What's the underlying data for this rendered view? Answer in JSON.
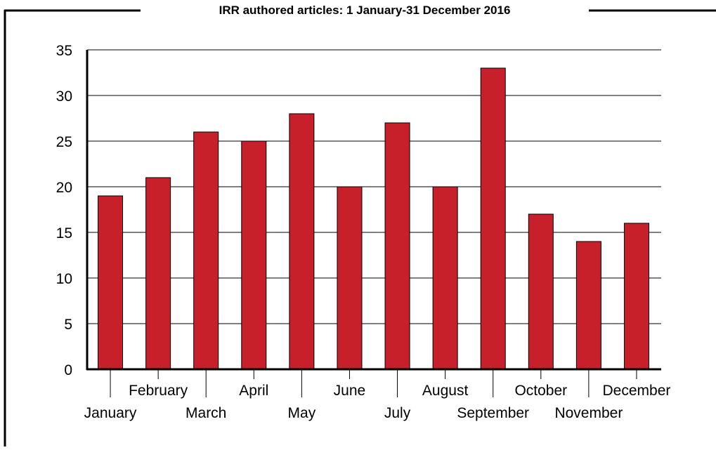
{
  "chart_data": {
    "type": "bar",
    "title": "IRR authored articles: 1 January-31 December 2016",
    "categories": [
      "January",
      "February",
      "March",
      "April",
      "May",
      "June",
      "July",
      "August",
      "September",
      "October",
      "November",
      "December"
    ],
    "values": [
      19,
      21,
      26,
      25,
      28,
      20,
      27,
      20,
      33,
      17,
      14,
      16
    ],
    "yticks": [
      0,
      5,
      10,
      15,
      20,
      25,
      30,
      35
    ],
    "ylim": [
      0,
      35
    ],
    "grid": true,
    "bar_color": "#c8202a",
    "xlabel": "",
    "ylabel": ""
  }
}
